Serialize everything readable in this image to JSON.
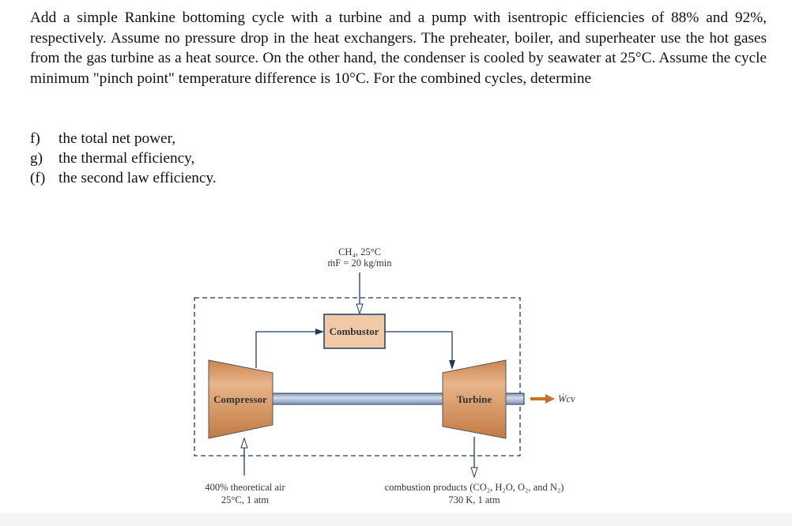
{
  "problem": {
    "text": "Add a simple Rankine bottoming cycle with a turbine and a pump with isentropic efficiencies of 88% and 92%, respectively. Assume no pressure drop in the heat exchangers. The preheater, boiler, and superheater use the hot gases from the gas turbine as a heat source. On the other hand, the condenser is cooled by seawater at 25°C. Assume the cycle minimum \"pinch point\" temperature difference is 10°C. For the combined cycles, determine",
    "parts": [
      {
        "label": "f)",
        "text": "the total net power,"
      },
      {
        "label": "g)",
        "text": "the thermal efficiency,"
      },
      {
        "label": "(f)",
        "text": "the second law efficiency."
      }
    ]
  },
  "diagram": {
    "fuel_line1": "CH₄, 25°C",
    "fuel_line2": "ṁF = 20 kg/min",
    "combustor": "Combustor",
    "compressor": "Compressor",
    "turbine": "Turbine",
    "work_out": "Ẇcv",
    "air_line1": "400% theoretical air",
    "air_line2": "25°C, 1 atm",
    "exhaust_line1": "combustion products (CO₂, H₂O, O₂, and N₂)",
    "exhaust_line2": "730 K, 1 atm",
    "colors": {
      "machine": "#d9955f",
      "combustor": "#f0c9a6",
      "line": "#1f3a5f",
      "shaft": "#a9b9d3",
      "work_arrow": "#c9712a"
    }
  }
}
